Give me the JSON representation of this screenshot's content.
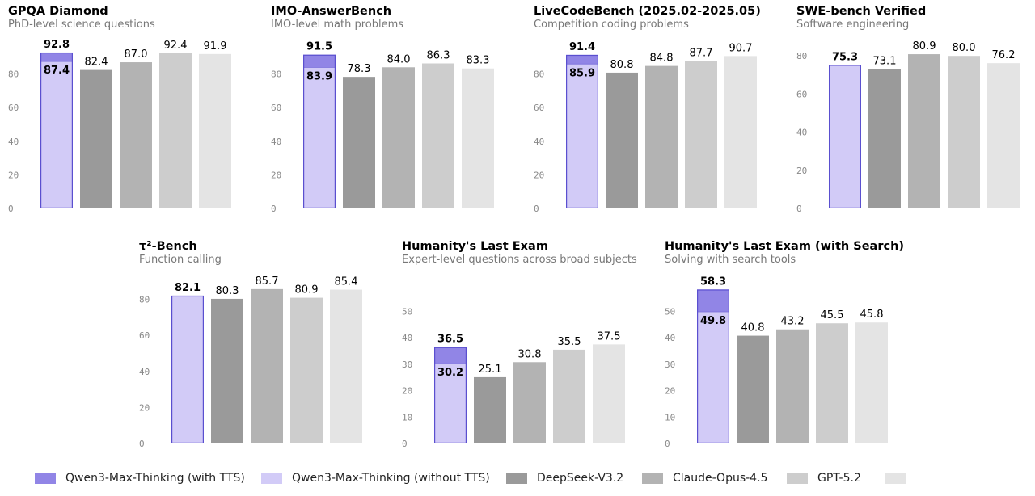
{
  "legend": [
    {
      "label": "Qwen3-Max-Thinking (with TTS)",
      "color": "#9185E6"
    },
    {
      "label": "Qwen3-Max-Thinking (without TTS)",
      "color": "#D2CBF7"
    },
    {
      "label": "DeepSeek-V3.2",
      "color": "#9A9A9A"
    },
    {
      "label": "Claude-Opus-4.5",
      "color": "#B3B3B3"
    },
    {
      "label": "GPT-5.2",
      "color": "#CDCDCD"
    },
    {
      "label": "",
      "color": "#E4E4E4"
    }
  ],
  "colors": {
    "qwen_tts": "#9185E6",
    "qwen_no_tts": "#D2CBF7",
    "qwen_border": "#5A4FCF",
    "deepseek": "#9A9A9A",
    "claude": "#B3B3B3",
    "gpt": "#CDCDCD",
    "last": "#E4E4E4"
  },
  "chart_data": [
    {
      "type": "bar",
      "title": "GPQA Diamond",
      "subtitle": "PhD-level science questions",
      "yticks": [
        0,
        20,
        40,
        60,
        80
      ],
      "ylim": [
        0,
        100
      ],
      "values": [
        87.4,
        82.4,
        87.0,
        92.4,
        91.9
      ],
      "tts_value": 92.8
    },
    {
      "type": "bar",
      "title": "IMO-AnswerBench",
      "subtitle": "IMO-level math problems",
      "yticks": [
        0,
        20,
        40,
        60,
        80
      ],
      "ylim": [
        0,
        100
      ],
      "values": [
        83.9,
        78.3,
        84.0,
        86.3,
        83.3
      ],
      "tts_value": 91.5
    },
    {
      "type": "bar",
      "title": "LiveCodeBench (2025.02-2025.05)",
      "subtitle": "Competition coding problems",
      "yticks": [
        0,
        20,
        40,
        60,
        80
      ],
      "ylim": [
        0,
        100
      ],
      "values": [
        85.9,
        80.8,
        84.8,
        87.7,
        90.7
      ],
      "tts_value": 91.4
    },
    {
      "type": "bar",
      "title": "SWE-bench Verified",
      "subtitle": "Software engineering",
      "yticks": [
        0,
        20,
        40,
        60,
        80
      ],
      "ylim": [
        0,
        90
      ],
      "values": [
        75.3,
        73.1,
        80.9,
        80.0,
        76.2
      ],
      "tts_value": null
    },
    {
      "type": "bar",
      "title": "τ²-Bench",
      "subtitle": "Function calling",
      "yticks": [
        0,
        20,
        40,
        60,
        80
      ],
      "ylim": [
        0,
        95
      ],
      "values": [
        82.1,
        80.3,
        85.7,
        80.9,
        85.4
      ],
      "tts_value": null
    },
    {
      "type": "bar",
      "title": "Humanity's Last Exam",
      "subtitle": "Expert-level questions across broad subjects",
      "yticks": [
        0,
        10,
        20,
        30,
        40,
        50
      ],
      "ylim": [
        0,
        60
      ],
      "values": [
        30.2,
        25.1,
        30.8,
        35.5,
        37.5
      ],
      "tts_value": 36.5
    },
    {
      "type": "bar",
      "title": "Humanity's Last Exam (with Search)",
      "subtitle": "Solving with search tools",
      "yticks": [
        0,
        10,
        20,
        30,
        40,
        50
      ],
      "ylim": [
        0,
        60
      ],
      "values": [
        49.8,
        40.8,
        43.2,
        45.5,
        45.8
      ],
      "tts_value": 58.3
    }
  ]
}
